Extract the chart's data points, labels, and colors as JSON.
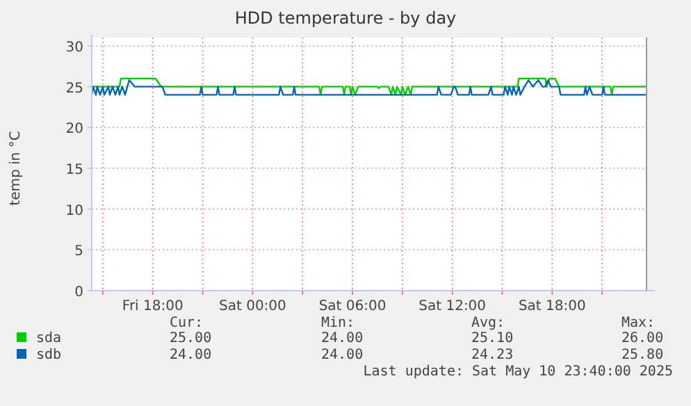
{
  "chart_data": {
    "type": "line",
    "title": "HDD temperature - by day",
    "ylabel": "temp in °C",
    "xlim": [
      "2025-05-09T14:20",
      "2025-05-10T23:40"
    ],
    "xticks": [
      {
        "value": "2025-05-09T15:00",
        "label": null
      },
      {
        "value": "2025-05-09T18:00",
        "label": "Fri 18:00"
      },
      {
        "value": "2025-05-09T21:00",
        "label": null
      },
      {
        "value": "2025-05-10T00:00",
        "label": "Sat 00:00"
      },
      {
        "value": "2025-05-10T03:00",
        "label": null
      },
      {
        "value": "2025-05-10T06:00",
        "label": "Sat 06:00"
      },
      {
        "value": "2025-05-10T09:00",
        "label": null
      },
      {
        "value": "2025-05-10T12:00",
        "label": "Sat 12:00"
      },
      {
        "value": "2025-05-10T15:00",
        "label": null
      },
      {
        "value": "2025-05-10T18:00",
        "label": "Sat 18:00"
      },
      {
        "value": "2025-05-10T21:00",
        "label": null
      }
    ],
    "ylim": [
      0,
      30
    ],
    "yticks": [
      0,
      5,
      10,
      15,
      20,
      25,
      30
    ],
    "grid": true,
    "legend": "bottom",
    "marker": "none",
    "line_style": "solid",
    "series": [
      {
        "name": "sda",
        "color": "#00cc00",
        "x": [
          "2025-05-09T14:20",
          "2025-05-09T16:00",
          "2025-05-09T16:05",
          "2025-05-09T18:10",
          "2025-05-09T18:30",
          "2025-05-10T04:00",
          "2025-05-10T04:05",
          "2025-05-10T04:10",
          "2025-05-10T05:25",
          "2025-05-10T05:30",
          "2025-05-10T05:35",
          "2025-05-10T05:50",
          "2025-05-10T05:55",
          "2025-05-10T06:00",
          "2025-05-10T06:10",
          "2025-05-10T06:20",
          "2025-05-10T07:30",
          "2025-05-10T07:35",
          "2025-05-10T07:40",
          "2025-05-10T08:10",
          "2025-05-10T08:20",
          "2025-05-10T08:25",
          "2025-05-10T08:35",
          "2025-05-10T08:40",
          "2025-05-10T08:55",
          "2025-05-10T09:00",
          "2025-05-10T09:10",
          "2025-05-10T09:20",
          "2025-05-10T09:30",
          "2025-05-10T09:35",
          "2025-05-10T15:55",
          "2025-05-10T16:00",
          "2025-05-10T17:35",
          "2025-05-10T17:40",
          "2025-05-10T17:50",
          "2025-05-10T18:10",
          "2025-05-10T18:25",
          "2025-05-10T21:30",
          "2025-05-10T21:35",
          "2025-05-10T21:40",
          "2025-05-10T23:40"
        ],
        "values": [
          25,
          25,
          26,
          26,
          25,
          25,
          24,
          25,
          25,
          24,
          25,
          25,
          24,
          25,
          24,
          25,
          25,
          24.8,
          25,
          25,
          24,
          25,
          24,
          25,
          24,
          25,
          24,
          25,
          24,
          25,
          25,
          26,
          26,
          25,
          26,
          26,
          25,
          25,
          24,
          25,
          25
        ]
      },
      {
        "name": "sdb",
        "color": "#0066b3",
        "x": [
          "2025-05-09T14:20",
          "2025-05-09T14:25",
          "2025-05-09T14:35",
          "2025-05-09T14:40",
          "2025-05-09T14:50",
          "2025-05-09T15:00",
          "2025-05-09T15:05",
          "2025-05-09T15:20",
          "2025-05-09T15:25",
          "2025-05-09T15:35",
          "2025-05-09T15:45",
          "2025-05-09T15:55",
          "2025-05-09T16:00",
          "2025-05-09T16:10",
          "2025-05-09T16:20",
          "2025-05-09T16:35",
          "2025-05-09T16:55",
          "2025-05-09T18:35",
          "2025-05-09T18:45",
          "2025-05-09T20:50",
          "2025-05-09T20:55",
          "2025-05-09T21:00",
          "2025-05-09T21:50",
          "2025-05-09T21:55",
          "2025-05-09T22:00",
          "2025-05-09T22:50",
          "2025-05-09T22:55",
          "2025-05-09T23:00",
          "2025-05-10T01:35",
          "2025-05-10T01:40",
          "2025-05-10T01:50",
          "2025-05-10T02:25",
          "2025-05-10T02:30",
          "2025-05-10T02:35",
          "2025-05-10T11:05",
          "2025-05-10T11:10",
          "2025-05-10T11:20",
          "2025-05-10T11:55",
          "2025-05-10T12:05",
          "2025-05-10T12:10",
          "2025-05-10T12:20",
          "2025-05-10T13:00",
          "2025-05-10T13:05",
          "2025-05-10T13:10",
          "2025-05-10T14:10",
          "2025-05-10T14:20",
          "2025-05-10T14:25",
          "2025-05-10T15:05",
          "2025-05-10T15:10",
          "2025-05-10T15:20",
          "2025-05-10T15:25",
          "2025-05-10T15:35",
          "2025-05-10T15:40",
          "2025-05-10T15:50",
          "2025-05-10T16:00",
          "2025-05-10T16:05",
          "2025-05-10T16:20",
          "2025-05-10T16:35",
          "2025-05-10T16:50",
          "2025-05-10T17:10",
          "2025-05-10T17:25",
          "2025-05-10T17:35",
          "2025-05-10T17:45",
          "2025-05-10T17:55",
          "2025-05-10T18:25",
          "2025-05-10T18:30",
          "2025-05-10T19:55",
          "2025-05-10T20:00",
          "2025-05-10T20:05",
          "2025-05-10T20:15",
          "2025-05-10T20:25",
          "2025-05-10T21:00",
          "2025-05-10T21:05",
          "2025-05-10T21:10",
          "2025-05-10T23:40"
        ],
        "values": [
          24,
          25,
          24,
          25,
          24,
          25,
          24,
          25,
          24,
          25,
          24,
          25,
          24,
          25,
          24,
          25.8,
          25,
          25,
          24,
          24,
          25,
          24,
          24,
          25,
          24,
          24,
          25,
          24,
          24,
          25,
          24,
          24,
          25,
          24,
          24,
          25,
          24,
          24,
          25,
          25,
          24,
          24,
          25,
          24,
          24,
          25,
          24,
          24,
          25,
          24,
          25,
          24,
          25,
          24,
          25,
          24,
          25,
          25.8,
          25,
          25.8,
          25,
          25,
          25.8,
          25,
          25,
          24,
          24,
          25,
          24,
          25,
          24,
          24,
          25,
          24,
          24
        ]
      }
    ],
    "annotations": [
      "Cur:",
      "Min:",
      "Avg:",
      "Max:",
      "25.00",
      "24.00",
      "25.10",
      "26.00",
      "24.00",
      "24.00",
      "24.23",
      "25.80",
      "Last update: Sat May 10 23:40:00 2025"
    ]
  }
}
